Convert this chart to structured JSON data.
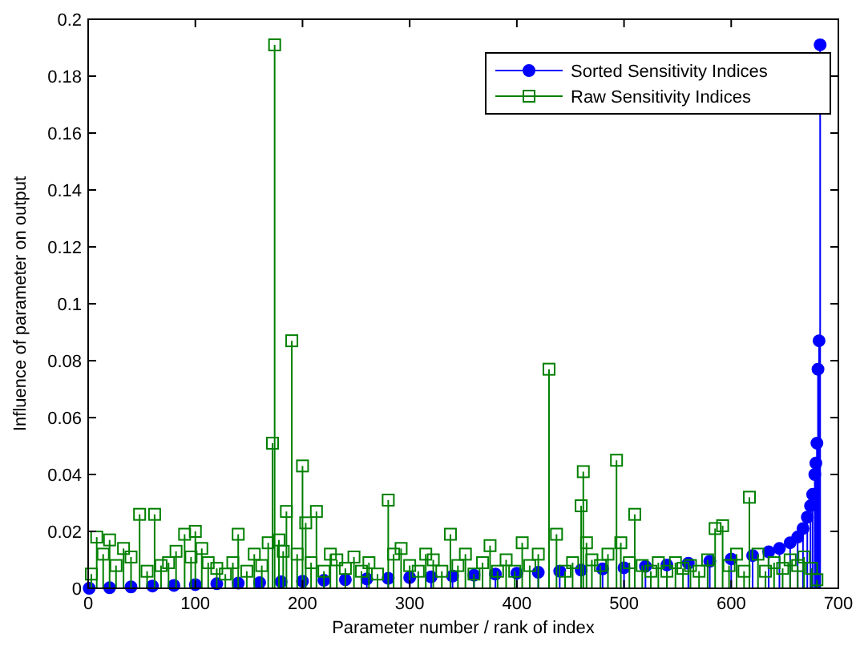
{
  "chart_data": {
    "type": "lollipop",
    "xlabel": "Parameter number / rank of index",
    "ylabel": "Influence of parameter on output",
    "xlim": [
      0,
      700
    ],
    "xticks": [
      0,
      100,
      200,
      300,
      400,
      500,
      600,
      700
    ],
    "ylim": [
      0,
      0.2
    ],
    "yticks": [
      0,
      0.02,
      0.04,
      0.06,
      0.08,
      0.1,
      0.12,
      0.14,
      0.16,
      0.18,
      0.2
    ],
    "grid": false,
    "legend": "top right",
    "series": [
      {
        "name": "Sorted Sensitivity Indices",
        "color": "#0000ff",
        "marker": "circle",
        "x": [
          1,
          20,
          40,
          60,
          80,
          100,
          120,
          140,
          160,
          180,
          200,
          220,
          240,
          260,
          280,
          300,
          320,
          340,
          360,
          380,
          400,
          420,
          440,
          460,
          480,
          500,
          520,
          540,
          560,
          580,
          600,
          620,
          635,
          645,
          655,
          662,
          667,
          671,
          674,
          676,
          678,
          679,
          680,
          681,
          682,
          683
        ],
        "values": [
          0,
          0.0002,
          0.0005,
          0.0008,
          0.001,
          0.0013,
          0.0016,
          0.0018,
          0.002,
          0.0023,
          0.0025,
          0.0028,
          0.003,
          0.0033,
          0.0035,
          0.0038,
          0.004,
          0.0043,
          0.0046,
          0.005,
          0.0053,
          0.0056,
          0.006,
          0.0064,
          0.0068,
          0.0072,
          0.0077,
          0.0082,
          0.0088,
          0.0095,
          0.0103,
          0.0115,
          0.0128,
          0.014,
          0.016,
          0.018,
          0.021,
          0.025,
          0.029,
          0.033,
          0.04,
          0.044,
          0.051,
          0.077,
          0.087,
          0.191
        ]
      },
      {
        "name": "Raw Sensitivity Indices",
        "color": "#008000",
        "marker": "square",
        "x": [
          3,
          8,
          14,
          20,
          26,
          33,
          40,
          48,
          55,
          62,
          68,
          75,
          82,
          90,
          96,
          100,
          106,
          112,
          120,
          128,
          135,
          140,
          148,
          155,
          162,
          168,
          172,
          174,
          178,
          182,
          185,
          190,
          195,
          200,
          203,
          208,
          213,
          220,
          226,
          232,
          240,
          248,
          255,
          262,
          270,
          280,
          285,
          292,
          300,
          308,
          315,
          322,
          330,
          338,
          345,
          352,
          360,
          368,
          375,
          382,
          390,
          398,
          405,
          412,
          420,
          430,
          437,
          445,
          452,
          460,
          462,
          465,
          470,
          478,
          485,
          493,
          497,
          505,
          510,
          517,
          525,
          532,
          540,
          548,
          555,
          562,
          570,
          578,
          585,
          592,
          598,
          605,
          612,
          617,
          625,
          632,
          640,
          648,
          655,
          662,
          668,
          675,
          680
        ],
        "values": [
          0.005,
          0.018,
          0.012,
          0.017,
          0.008,
          0.014,
          0.011,
          0.026,
          0.006,
          0.026,
          0.008,
          0.009,
          0.013,
          0.019,
          0.011,
          0.02,
          0.014,
          0.009,
          0.007,
          0.005,
          0.009,
          0.019,
          0.006,
          0.012,
          0.008,
          0.016,
          0.051,
          0.191,
          0.017,
          0.013,
          0.027,
          0.087,
          0.012,
          0.043,
          0.023,
          0.009,
          0.027,
          0.006,
          0.012,
          0.01,
          0.007,
          0.011,
          0.006,
          0.009,
          0.005,
          0.031,
          0.012,
          0.014,
          0.008,
          0.006,
          0.012,
          0.01,
          0.006,
          0.019,
          0.008,
          0.012,
          0.005,
          0.009,
          0.015,
          0.006,
          0.01,
          0.006,
          0.016,
          0.008,
          0.012,
          0.077,
          0.019,
          0.006,
          0.009,
          0.029,
          0.041,
          0.016,
          0.01,
          0.008,
          0.012,
          0.045,
          0.016,
          0.009,
          0.026,
          0.008,
          0.006,
          0.009,
          0.006,
          0.009,
          0.007,
          0.008,
          0.006,
          0.01,
          0.021,
          0.022,
          0.008,
          0.012,
          0.006,
          0.032,
          0.012,
          0.006,
          0.009,
          0.007,
          0.01,
          0.008,
          0.011,
          0.007,
          0.003
        ]
      }
    ]
  }
}
